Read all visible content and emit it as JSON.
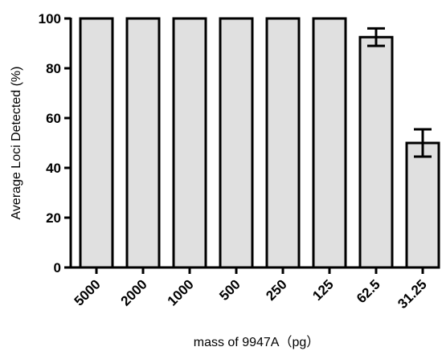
{
  "chart_data": {
    "type": "bar",
    "categories": [
      "5000",
      "2000",
      "1000",
      "500",
      "250",
      "125",
      "62.5",
      "31.25"
    ],
    "values": [
      100,
      100,
      100,
      100,
      100,
      100,
      92.5,
      50
    ],
    "error": [
      0,
      0,
      0,
      0,
      0,
      0,
      3.5,
      5.5
    ],
    "xlabel": "mass of 9947A（pg）",
    "ylabel": "Average Loci Detected (%)",
    "ylim": [
      0,
      100
    ],
    "yticks": [
      0,
      20,
      40,
      60,
      80,
      100
    ],
    "grid": false,
    "legend": "none",
    "bar_color": "#e0e0e0",
    "edge_color": "#000000"
  }
}
